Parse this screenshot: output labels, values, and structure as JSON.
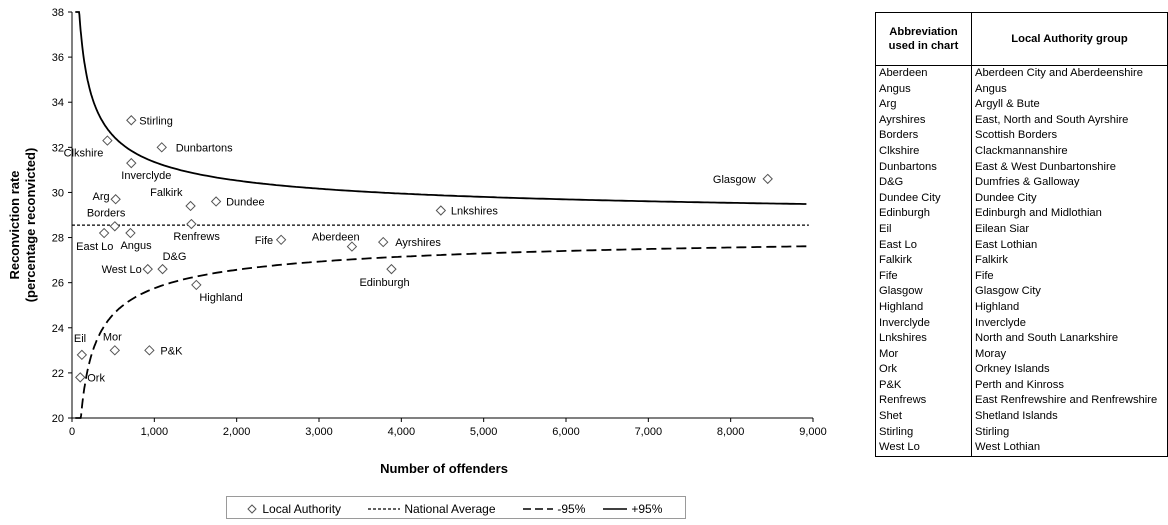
{
  "chart_data": {
    "type": "scatter",
    "xlabel": "Number of offenders",
    "ylabel_line1": "Reconviction rate",
    "ylabel_line2": "(percentage reconvicted)",
    "xlim": [
      0,
      9000
    ],
    "ylim": [
      20,
      38
    ],
    "x_ticks": [
      "0",
      "1,000",
      "2,000",
      "3,000",
      "4,000",
      "5,000",
      "6,000",
      "7,000",
      "8,000",
      "9,000"
    ],
    "y_ticks": [
      "20",
      "22",
      "24",
      "26",
      "28",
      "30",
      "32",
      "34",
      "36",
      "38"
    ],
    "grid": false,
    "legend_position": "bottom",
    "national_average": 28.55,
    "points": [
      {
        "label": "Stirling",
        "x": 720,
        "y": 33.2
      },
      {
        "label": "Clkshire",
        "x": 430,
        "y": 32.3
      },
      {
        "label": "Dunbartons",
        "x": 1090,
        "y": 32.0
      },
      {
        "label": "Inverclyde",
        "x": 720,
        "y": 31.3
      },
      {
        "label": "Arg",
        "x": 530,
        "y": 29.7
      },
      {
        "label": "Falkirk",
        "x": 1440,
        "y": 29.4
      },
      {
        "label": "Dundee",
        "x": 1750,
        "y": 29.6
      },
      {
        "label": "Glasgow",
        "x": 8450,
        "y": 30.6
      },
      {
        "label": "Lnkshires",
        "x": 4480,
        "y": 29.2
      },
      {
        "label": "Borders",
        "x": 520,
        "y": 28.5
      },
      {
        "label": "Renfrews",
        "x": 1450,
        "y": 28.6
      },
      {
        "label": "East Lo",
        "x": 390,
        "y": 28.2
      },
      {
        "label": "Angus",
        "x": 710,
        "y": 28.2
      },
      {
        "label": "Fife",
        "x": 2540,
        "y": 27.9
      },
      {
        "label": "Aberdeen",
        "x": 3400,
        "y": 27.6
      },
      {
        "label": "Ayrshires",
        "x": 3780,
        "y": 27.8
      },
      {
        "label": "West Lo",
        "x": 920,
        "y": 26.6
      },
      {
        "label": "D&G",
        "x": 1100,
        "y": 26.6
      },
      {
        "label": "Edinburgh",
        "x": 3880,
        "y": 26.6
      },
      {
        "label": "Highland",
        "x": 1510,
        "y": 25.9
      },
      {
        "label": "Eil",
        "x": 120,
        "y": 22.8
      },
      {
        "label": "Mor",
        "x": 520,
        "y": 23.0
      },
      {
        "label": "P&K",
        "x": 940,
        "y": 23.0
      },
      {
        "label": "Ork",
        "x": 100,
        "y": 21.8
      }
    ],
    "series": [
      {
        "name": "Local Authority"
      },
      {
        "name": "National Average"
      },
      {
        "name": "-95%"
      },
      {
        "name": "+95%"
      }
    ],
    "colors": {
      "marker": "#555555",
      "line": "#000000"
    }
  },
  "table": {
    "header_col1": "Abbreviation used in chart",
    "header_col2": "Local Authority group",
    "rows": [
      [
        "Aberdeen",
        "Aberdeen City and Aberdeenshire"
      ],
      [
        "Angus",
        "Angus"
      ],
      [
        "Arg",
        "Argyll & Bute"
      ],
      [
        "Ayrshires",
        "East, North and South Ayrshire"
      ],
      [
        "Borders",
        "Scottish Borders"
      ],
      [
        "Clkshire",
        "Clackmannanshire"
      ],
      [
        "Dunbartons",
        "East & West Dunbartonshire"
      ],
      [
        "D&G",
        "Dumfries & Galloway"
      ],
      [
        "Dundee City",
        "Dundee City"
      ],
      [
        "Edinburgh",
        "Edinburgh and Midlothian"
      ],
      [
        "Eil",
        "Eilean Siar"
      ],
      [
        "East Lo",
        "East Lothian"
      ],
      [
        "Falkirk",
        "Falkirk"
      ],
      [
        "Fife",
        "Fife"
      ],
      [
        "Glasgow",
        "Glasgow City"
      ],
      [
        "Highland",
        "Highland"
      ],
      [
        "Inverclyde",
        "Inverclyde"
      ],
      [
        "Lnkshires",
        "North and South Lanarkshire"
      ],
      [
        "Mor",
        "Moray"
      ],
      [
        "Ork",
        "Orkney Islands"
      ],
      [
        "P&K",
        "Perth and Kinross"
      ],
      [
        "Renfrews",
        "East Renfrewshire and Renfrewshire"
      ],
      [
        "Shet",
        "Shetland Islands"
      ],
      [
        "Stirling",
        "Stirling"
      ],
      [
        "West Lo",
        "West Lothian"
      ]
    ]
  }
}
